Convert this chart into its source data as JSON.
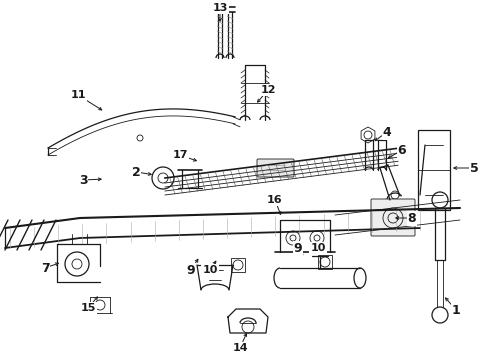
{
  "bg": "#ffffff",
  "lc": "#1a1a1a",
  "lw": 0.9,
  "figsize": [
    4.9,
    3.6
  ],
  "dpi": 100,
  "labels": {
    "1": [
      0.93,
      0.82,
      0.91,
      0.79
    ],
    "2": [
      0.278,
      0.455,
      0.298,
      0.47
    ],
    "3": [
      0.17,
      0.468,
      0.21,
      0.472
    ],
    "4": [
      0.79,
      0.335,
      0.762,
      0.348
    ],
    "5": [
      0.968,
      0.368,
      0.94,
      0.368
    ],
    "6": [
      0.82,
      0.385,
      0.79,
      0.395
    ],
    "7": [
      0.092,
      0.71,
      0.118,
      0.695
    ],
    "8": [
      0.84,
      0.53,
      0.8,
      0.53
    ],
    "9a": [
      0.39,
      0.74,
      0.395,
      0.71
    ],
    "9b": [
      0.608,
      0.65,
      0.612,
      0.625
    ],
    "10a": [
      0.428,
      0.74,
      0.432,
      0.71
    ],
    "10b": [
      0.648,
      0.65,
      0.65,
      0.62
    ],
    "11": [
      0.158,
      0.258,
      0.195,
      0.27
    ],
    "12": [
      0.548,
      0.228,
      0.51,
      0.245
    ],
    "13": [
      0.445,
      0.025,
      0.445,
      0.06
    ],
    "14": [
      0.478,
      0.958,
      0.478,
      0.93
    ],
    "15": [
      0.178,
      0.825,
      0.19,
      0.8
    ],
    "16": [
      0.562,
      0.52,
      0.56,
      0.49
    ],
    "17": [
      0.368,
      0.418,
      0.4,
      0.418
    ]
  },
  "label_names": {
    "1": "1",
    "2": "2",
    "3": "3",
    "4": "4",
    "5": "5",
    "6": "6",
    "7": "7",
    "8": "8",
    "9a": "9",
    "9b": "9",
    "10a": "10",
    "10b": "10",
    "11": "11",
    "12": "12",
    "13": "13",
    "14": "14",
    "15": "15",
    "16": "16",
    "17": "17"
  }
}
